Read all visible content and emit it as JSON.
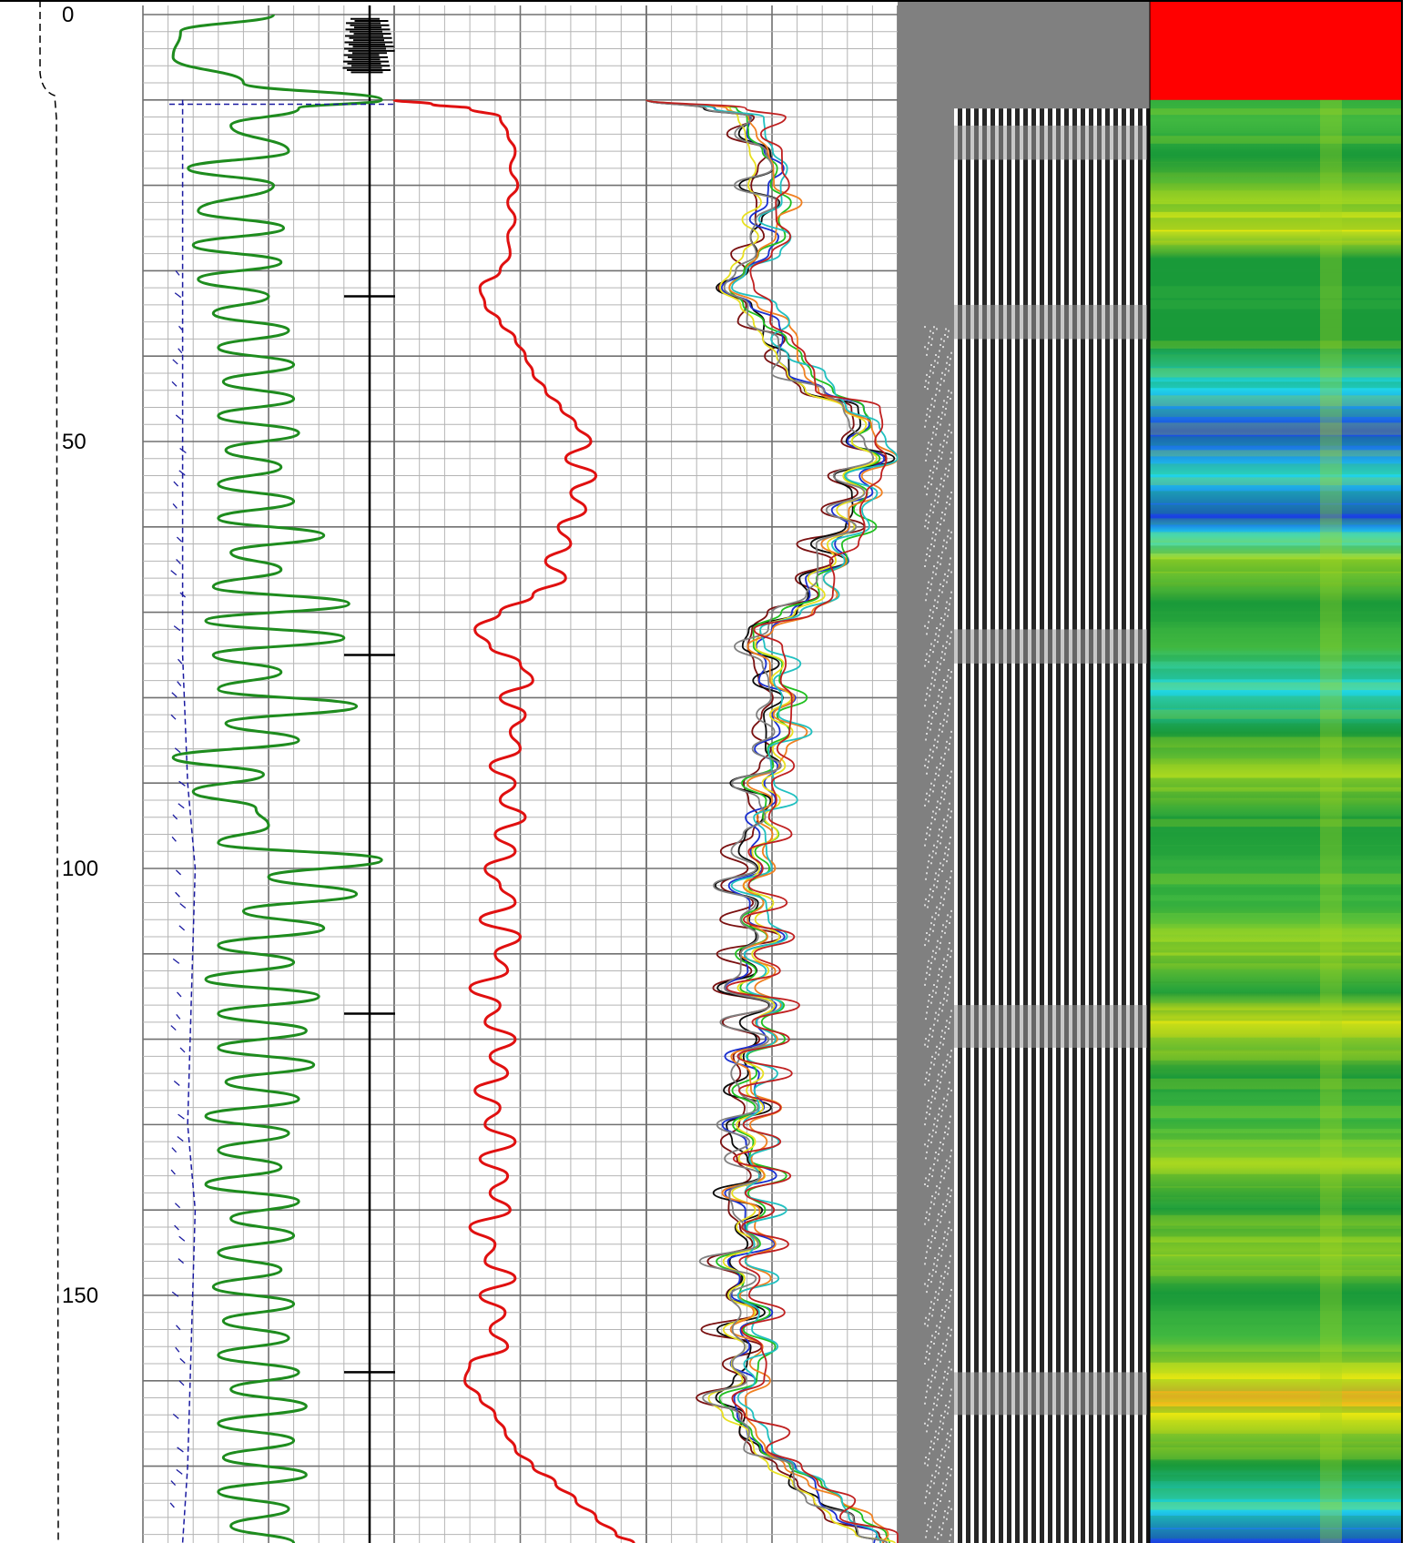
{
  "chart_data": {
    "type": "line",
    "title": "",
    "ylabel": "",
    "y_axis": {
      "ticks": [
        0,
        50,
        100,
        150
      ],
      "tick_labels": [
        "0",
        "50",
        "100",
        "150"
      ],
      "range": [
        0,
        179
      ],
      "reversed": true,
      "grid": true
    },
    "tracks": [
      {
        "name": "track-1",
        "grid": true,
        "series": [
          {
            "color": "#1e8c1e",
            "style": "solid",
            "depths": [
              0,
              2,
              5,
              8,
              10,
              11,
              13,
              16,
              18,
              20,
              23,
              25,
              27,
              29,
              31,
              33,
              35,
              37,
              39,
              41,
              43,
              45,
              47,
              49,
              51,
              53,
              55,
              57,
              59,
              61,
              63,
              65,
              67,
              69,
              71,
              73,
              75,
              77,
              79,
              81,
              83,
              85,
              87,
              89,
              91,
              93,
              95,
              97,
              99,
              101,
              103,
              105,
              107,
              109,
              111,
              113,
              115,
              117,
              119,
              121,
              123,
              125,
              127,
              129,
              131,
              133,
              135,
              137,
              139,
              141,
              143,
              145,
              147,
              149,
              151,
              153,
              155,
              157,
              159,
              161,
              163,
              165,
              167,
              169,
              171,
              173,
              175,
              177,
              179
            ],
            "x": [
              0.52,
              0.15,
              0.12,
              0.4,
              0.95,
              0.62,
              0.35,
              0.58,
              0.18,
              0.52,
              0.22,
              0.56,
              0.2,
              0.55,
              0.22,
              0.5,
              0.28,
              0.58,
              0.3,
              0.6,
              0.32,
              0.6,
              0.3,
              0.62,
              0.33,
              0.55,
              0.3,
              0.6,
              0.3,
              0.72,
              0.35,
              0.55,
              0.28,
              0.82,
              0.25,
              0.8,
              0.28,
              0.55,
              0.3,
              0.85,
              0.33,
              0.62,
              0.12,
              0.48,
              0.2,
              0.45,
              0.5,
              0.3,
              0.95,
              0.5,
              0.85,
              0.4,
              0.72,
              0.3,
              0.6,
              0.25,
              0.7,
              0.3,
              0.65,
              0.3,
              0.68,
              0.33,
              0.62,
              0.25,
              0.58,
              0.3,
              0.55,
              0.25,
              0.62,
              0.35,
              0.6,
              0.3,
              0.55,
              0.28,
              0.6,
              0.32,
              0.58,
              0.3,
              0.62,
              0.35,
              0.65,
              0.3,
              0.6,
              0.32,
              0.65,
              0.3,
              0.58,
              0.35,
              0.6
            ]
          },
          {
            "color": "#1a1aa0",
            "style": "dashed",
            "depths": [
              10,
              30,
              40,
              60,
              75,
              90,
              100,
              110,
              120,
              130,
              140,
              150,
              160,
              170,
              179
            ],
            "x": [
              0.1,
              0.1,
              0.1,
              0.1,
              0.1,
              0.12,
              0.15,
              0.14,
              0.13,
              0.12,
              0.15,
              0.14,
              0.13,
              0.12,
              0.1
            ]
          }
        ]
      },
      {
        "name": "track-2",
        "grid": false,
        "series": [
          {
            "color": "#000000",
            "style": "solid",
            "depths": [
              0,
              179
            ],
            "x": [
              0.5,
              0.5
            ]
          }
        ],
        "marker_depths": [
          33,
          75,
          117,
          159
        ]
      },
      {
        "name": "track-3",
        "grid": true,
        "series": [
          {
            "color": "#e01010",
            "style": "solid",
            "depths": [
              10,
              10.5,
              11,
              12,
              14,
              16,
              18,
              20,
              22,
              24,
              26,
              28,
              30,
              32,
              34,
              36,
              38,
              40,
              42,
              44,
              46,
              48,
              50,
              52,
              54,
              56,
              58,
              60,
              62,
              64,
              66,
              68,
              70,
              72,
              74,
              76,
              78,
              80,
              82,
              84,
              86,
              88,
              90,
              92,
              94,
              96,
              98,
              100,
              102,
              104,
              106,
              108,
              110,
              112,
              114,
              116,
              118,
              120,
              122,
              124,
              126,
              128,
              130,
              132,
              134,
              136,
              138,
              140,
              142,
              144,
              146,
              148,
              150,
              152,
              154,
              156,
              158,
              160,
              162,
              164,
              166,
              168,
              170,
              172,
              174,
              176,
              178,
              179
            ],
            "x": [
              0.0,
              0.15,
              0.3,
              0.42,
              0.45,
              0.48,
              0.46,
              0.49,
              0.45,
              0.48,
              0.45,
              0.46,
              0.42,
              0.34,
              0.36,
              0.42,
              0.48,
              0.52,
              0.55,
              0.6,
              0.66,
              0.72,
              0.78,
              0.68,
              0.8,
              0.7,
              0.76,
              0.65,
              0.7,
              0.6,
              0.68,
              0.55,
              0.42,
              0.32,
              0.38,
              0.5,
              0.55,
              0.42,
              0.52,
              0.46,
              0.5,
              0.38,
              0.48,
              0.42,
              0.52,
              0.4,
              0.48,
              0.36,
              0.42,
              0.48,
              0.34,
              0.5,
              0.4,
              0.45,
              0.3,
              0.42,
              0.36,
              0.48,
              0.38,
              0.45,
              0.32,
              0.42,
              0.36,
              0.48,
              0.34,
              0.45,
              0.38,
              0.46,
              0.3,
              0.4,
              0.36,
              0.48,
              0.34,
              0.44,
              0.38,
              0.45,
              0.3,
              0.28,
              0.34,
              0.4,
              0.44,
              0.48,
              0.55,
              0.64,
              0.72,
              0.8,
              0.88,
              0.95
            ]
          }
        ]
      },
      {
        "name": "track-4",
        "grid": true,
        "series": [
          {
            "color": "#7a1010",
            "offset": -0.08
          },
          {
            "color": "#0a0a0a",
            "offset": -0.04
          },
          {
            "color": "#1a30d0",
            "offset": 0.0
          },
          {
            "color": "#20c020",
            "offset": 0.03
          },
          {
            "color": "#e8e020",
            "offset": -0.02
          },
          {
            "color": "#f08020",
            "offset": 0.05
          },
          {
            "color": "#20c0c0",
            "offset": 0.07
          },
          {
            "color": "#808080",
            "offset": -0.06
          },
          {
            "color": "#c02020",
            "offset": 0.09
          }
        ],
        "base": {
          "depths": [
            10,
            11,
            12,
            14,
            16,
            18,
            20,
            22,
            24,
            26,
            28,
            30,
            32,
            34,
            36,
            38,
            40,
            42,
            44,
            46,
            48,
            50,
            52,
            54,
            56,
            58,
            60,
            62,
            64,
            66,
            68,
            70,
            72,
            74,
            76,
            78,
            80,
            82,
            84,
            86,
            88,
            90,
            92,
            94,
            96,
            98,
            100,
            102,
            104,
            106,
            108,
            110,
            112,
            114,
            116,
            118,
            120,
            122,
            124,
            126,
            128,
            130,
            132,
            134,
            136,
            138,
            140,
            142,
            144,
            146,
            148,
            150,
            152,
            154,
            156,
            158,
            160,
            162,
            164,
            166,
            168,
            170,
            172,
            174,
            176,
            178,
            179
          ],
          "x": [
            0.0,
            0.3,
            0.42,
            0.45,
            0.48,
            0.5,
            0.46,
            0.52,
            0.45,
            0.5,
            0.44,
            0.4,
            0.35,
            0.42,
            0.48,
            0.52,
            0.56,
            0.6,
            0.68,
            0.82,
            0.9,
            0.85,
            0.95,
            0.8,
            0.88,
            0.78,
            0.84,
            0.72,
            0.76,
            0.65,
            0.7,
            0.58,
            0.45,
            0.42,
            0.52,
            0.48,
            0.56,
            0.46,
            0.55,
            0.48,
            0.52,
            0.42,
            0.5,
            0.44,
            0.48,
            0.38,
            0.42,
            0.35,
            0.46,
            0.4,
            0.5,
            0.38,
            0.45,
            0.34,
            0.48,
            0.4,
            0.5,
            0.36,
            0.44,
            0.38,
            0.46,
            0.35,
            0.42,
            0.37,
            0.48,
            0.34,
            0.44,
            0.38,
            0.46,
            0.32,
            0.42,
            0.36,
            0.46,
            0.34,
            0.44,
            0.38,
            0.42,
            0.3,
            0.36,
            0.45,
            0.48,
            0.55,
            0.64,
            0.72,
            0.8,
            0.9,
            0.95
          ]
        }
      },
      {
        "name": "track-5",
        "type": "waveform",
        "colors": {
          "background": "#808080",
          "dark": "#000000",
          "light": "#ffffff"
        },
        "start_depth": 11
      },
      {
        "name": "track-6",
        "type": "heatmap",
        "colors": {
          "top": "#ff0000",
          "green": "#1a9a3a",
          "light_green": "#40b840",
          "yellow_green": "#a8d820",
          "yellow": "#e8e810",
          "cyan": "#20d8e8",
          "blue": "#1a40e0",
          "orange": "#f0a020"
        },
        "red_until_depth": 10
      }
    ]
  }
}
